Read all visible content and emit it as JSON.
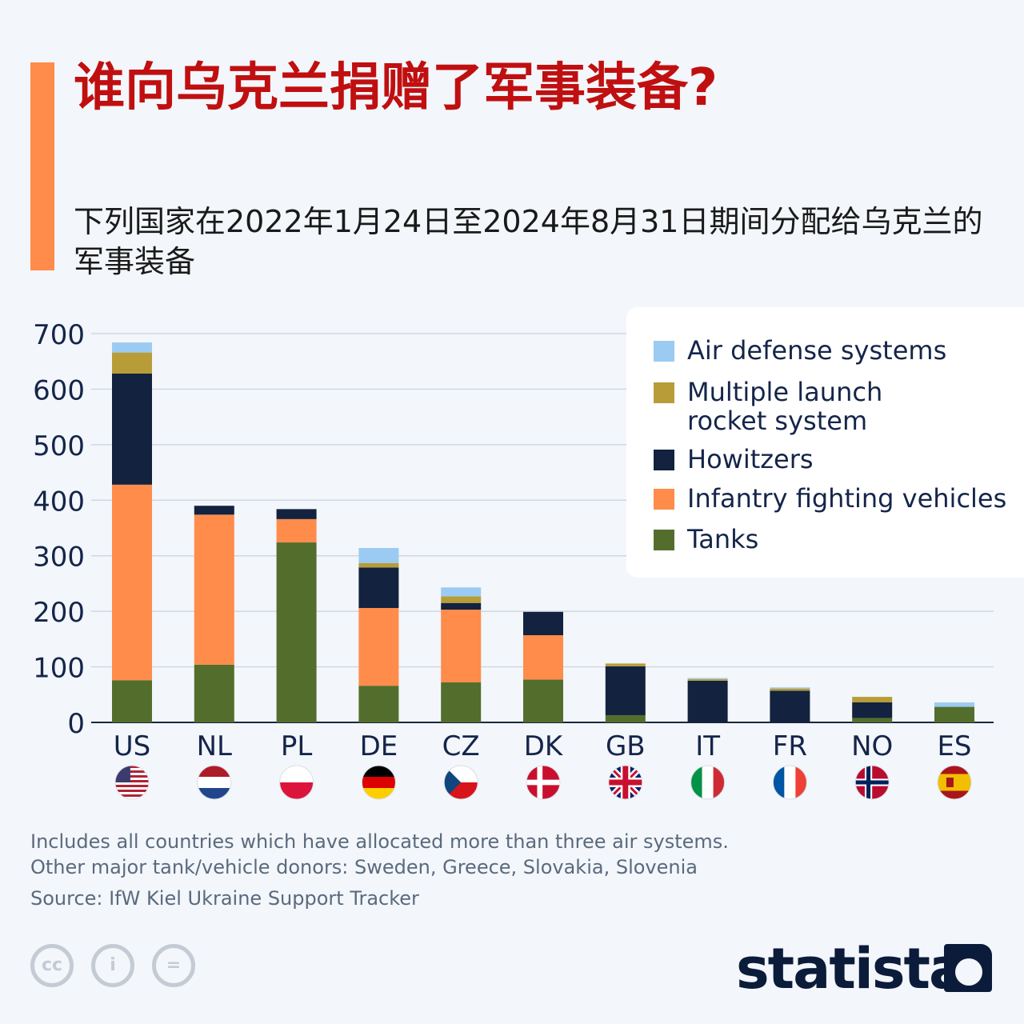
{
  "header": {
    "title": "谁向乌克兰捐赠了军事装备?",
    "subtitle": "下列国家在2022年1月24日至2024年8月31日期间分配给乌克兰的军事装备"
  },
  "colors": {
    "accent": "#ff8c4b",
    "title": "#c00f10",
    "air_defense": "#9bcbf2",
    "mlrs": "#b89c38",
    "howitzers": "#12223f",
    "ifv": "#ff8c4b",
    "tanks": "#536e2c"
  },
  "chart_data": {
    "type": "bar",
    "stacked": true,
    "categories": [
      "US",
      "NL",
      "PL",
      "DE",
      "CZ",
      "DK",
      "GB",
      "IT",
      "FR",
      "NO",
      "ES"
    ],
    "series": [
      {
        "name": "Tanks",
        "color": "#536e2c",
        "values": [
          76,
          104,
          324,
          66,
          72,
          77,
          13,
          0,
          0,
          8,
          28
        ]
      },
      {
        "name": "Infantry fighting vehicles",
        "color": "#ff8c4b",
        "values": [
          352,
          270,
          42,
          140,
          131,
          80,
          0,
          0,
          0,
          0,
          0
        ]
      },
      {
        "name": "Howitzers",
        "color": "#12223f",
        "values": [
          200,
          16,
          18,
          73,
          12,
          42,
          88,
          75,
          57,
          28,
          0
        ]
      },
      {
        "name": "Multiple launch rocket system",
        "color": "#b89c38",
        "values": [
          38,
          0,
          0,
          8,
          12,
          0,
          5,
          3,
          4,
          10,
          0
        ]
      },
      {
        "name": "Air defense systems",
        "color": "#9bcbf2",
        "values": [
          18,
          0,
          0,
          27,
          16,
          0,
          0,
          2,
          2,
          0,
          8
        ]
      }
    ],
    "legend_order": [
      "Air defense systems",
      "Multiple launch rocket system",
      "Howitzers",
      "Infantry fighting vehicles",
      "Tanks"
    ],
    "legend_labels": [
      "Air defense systems",
      "Multiple launch\nrocket system",
      "Howitzers",
      "Infantry fighting vehicles",
      "Tanks"
    ],
    "yticks": [
      0,
      100,
      200,
      300,
      400,
      500,
      600,
      700
    ],
    "ylim": [
      0,
      700
    ],
    "grid": true,
    "legend_position": "top-right",
    "flags": [
      "US",
      "NL",
      "PL",
      "DE",
      "CZ",
      "DK",
      "GB",
      "IT",
      "FR",
      "NO",
      "ES"
    ]
  },
  "footer": {
    "note_1": "Includes all countries which have allocated more than three air systems.",
    "note_2": "Other major tank/vehicle donors: Sweden, Greece, Slovakia, Slovenia",
    "source": "Source: IfW Kiel Ukraine Support Tracker",
    "license_icons": [
      "cc-icon",
      "attribution-icon",
      "no-derivatives-icon"
    ],
    "license_glyphs": [
      "cc",
      "i",
      "="
    ],
    "brand": "statista"
  }
}
